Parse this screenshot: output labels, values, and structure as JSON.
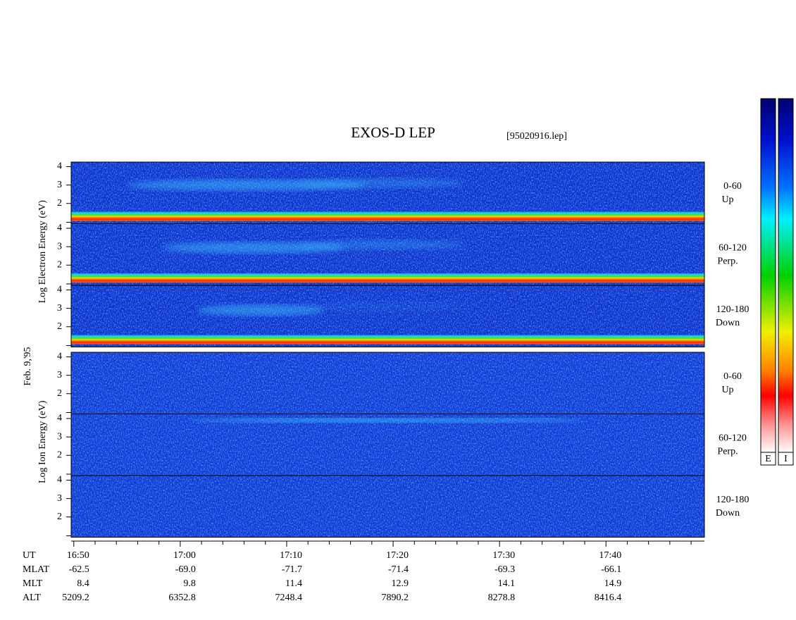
{
  "title": "EXOS-D LEP",
  "file": "[95020916.lep]",
  "date": "Feb. 9,'95",
  "ylim": [
    0.9,
    4.25
  ],
  "yticks": [
    2,
    3,
    4
  ],
  "groups": [
    {
      "axis_label": "Log Electron Energy (eV)",
      "panels": [
        {
          "angle": "0-60",
          "direction": "Up"
        },
        {
          "angle": "60-120",
          "direction": "Perp."
        },
        {
          "angle": "120-180",
          "direction": "Down"
        }
      ]
    },
    {
      "axis_label": "Log Ion Energy (eV)",
      "panels": [
        {
          "angle": "0-60",
          "direction": "Up"
        },
        {
          "angle": "60-120",
          "direction": "Perp."
        },
        {
          "angle": "120-180",
          "direction": "Down"
        }
      ]
    }
  ],
  "x_axis": {
    "xlim": [
      1009.75,
      1069.25
    ],
    "ticks": [
      {
        "value": 1010,
        "label": "16:50"
      },
      {
        "value": 1020,
        "label": "17:00"
      },
      {
        "value": 1030,
        "label": "17:10"
      },
      {
        "value": 1040,
        "label": "17:20"
      },
      {
        "value": 1050,
        "label": "17:30"
      },
      {
        "value": 1060,
        "label": "17:40"
      }
    ]
  },
  "ephemeris": {
    "ut_label": "UT",
    "rows": [
      {
        "name": "MLAT",
        "values": [
          "-62.5",
          "-69.0",
          "-71.7",
          "-71.4",
          "-69.3",
          "-66.1"
        ]
      },
      {
        "name": "MLT",
        "values": [
          "8.4",
          "9.8",
          "11.4",
          "12.9",
          "14.1",
          "14.9"
        ]
      },
      {
        "name": "ALT",
        "values": [
          "5209.2",
          "6352.8",
          "7248.4",
          "7890.2",
          "8278.8",
          "8416.4"
        ]
      }
    ]
  },
  "colorbars": [
    "E",
    "I"
  ]
}
